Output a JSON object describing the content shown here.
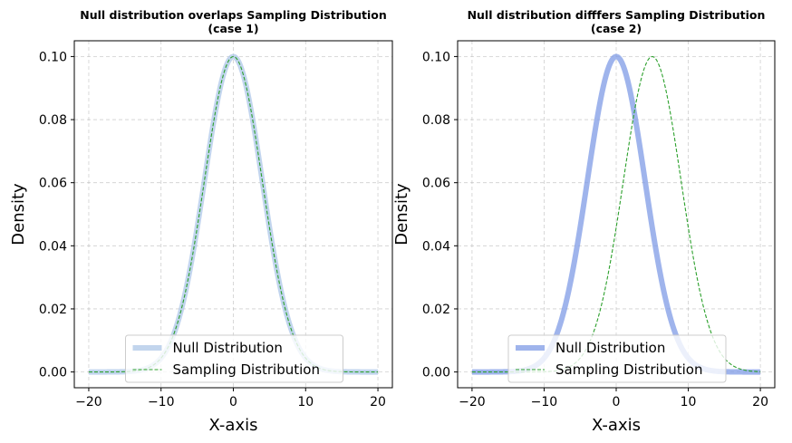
{
  "chart_data": [
    {
      "type": "line",
      "title": "Null distribution overlaps Sampling Distribution\n(case 1)",
      "xlabel": "X-axis",
      "ylabel": "Density",
      "xlim": [
        -22,
        22
      ],
      "ylim": [
        -0.005,
        0.105
      ],
      "xticks": [
        -20,
        -10,
        0,
        10,
        20
      ],
      "yticks": [
        0.0,
        0.02,
        0.04,
        0.06,
        0.08,
        0.1
      ],
      "xtick_labels": [
        "−20",
        "−10",
        "0",
        "10",
        "20"
      ],
      "ytick_labels": [
        "0.00",
        "0.02",
        "0.04",
        "0.06",
        "0.08",
        "0.10"
      ],
      "grid": true,
      "legend_location": "lower center",
      "x_range": [
        -20,
        20
      ],
      "series": [
        {
          "name": "Null Distribution",
          "distribution": "normal",
          "mean": 0,
          "std": 4,
          "peak": 0.1,
          "color": "#aec7e8",
          "style": "solid"
        },
        {
          "name": "Sampling Distribution",
          "distribution": "normal",
          "mean": 0,
          "std": 4,
          "peak": 0.1,
          "color": "#2ca02c",
          "style": "dashed"
        }
      ]
    },
    {
      "type": "line",
      "title": "Null distribution difffers Sampling Distribution\n(case 2)",
      "xlabel": "X-axis",
      "ylabel": "Density",
      "xlim": [
        -22,
        22
      ],
      "ylim": [
        -0.005,
        0.105
      ],
      "xticks": [
        -20,
        -10,
        0,
        10,
        20
      ],
      "yticks": [
        0.0,
        0.02,
        0.04,
        0.06,
        0.08,
        0.1
      ],
      "xtick_labels": [
        "−20",
        "−10",
        "0",
        "10",
        "20"
      ],
      "ytick_labels": [
        "0.00",
        "0.02",
        "0.04",
        "0.06",
        "0.08",
        "0.10"
      ],
      "grid": true,
      "legend_location": "lower center",
      "x_range": [
        -20,
        20
      ],
      "series": [
        {
          "name": "Null Distribution",
          "distribution": "normal",
          "mean": 0,
          "std": 4,
          "peak": 0.1,
          "color": "#7f9be6",
          "style": "solid"
        },
        {
          "name": "Sampling Distribution",
          "distribution": "normal",
          "mean": 5,
          "std": 4,
          "peak": 0.1,
          "color": "#2ca02c",
          "style": "dashed"
        }
      ]
    }
  ]
}
